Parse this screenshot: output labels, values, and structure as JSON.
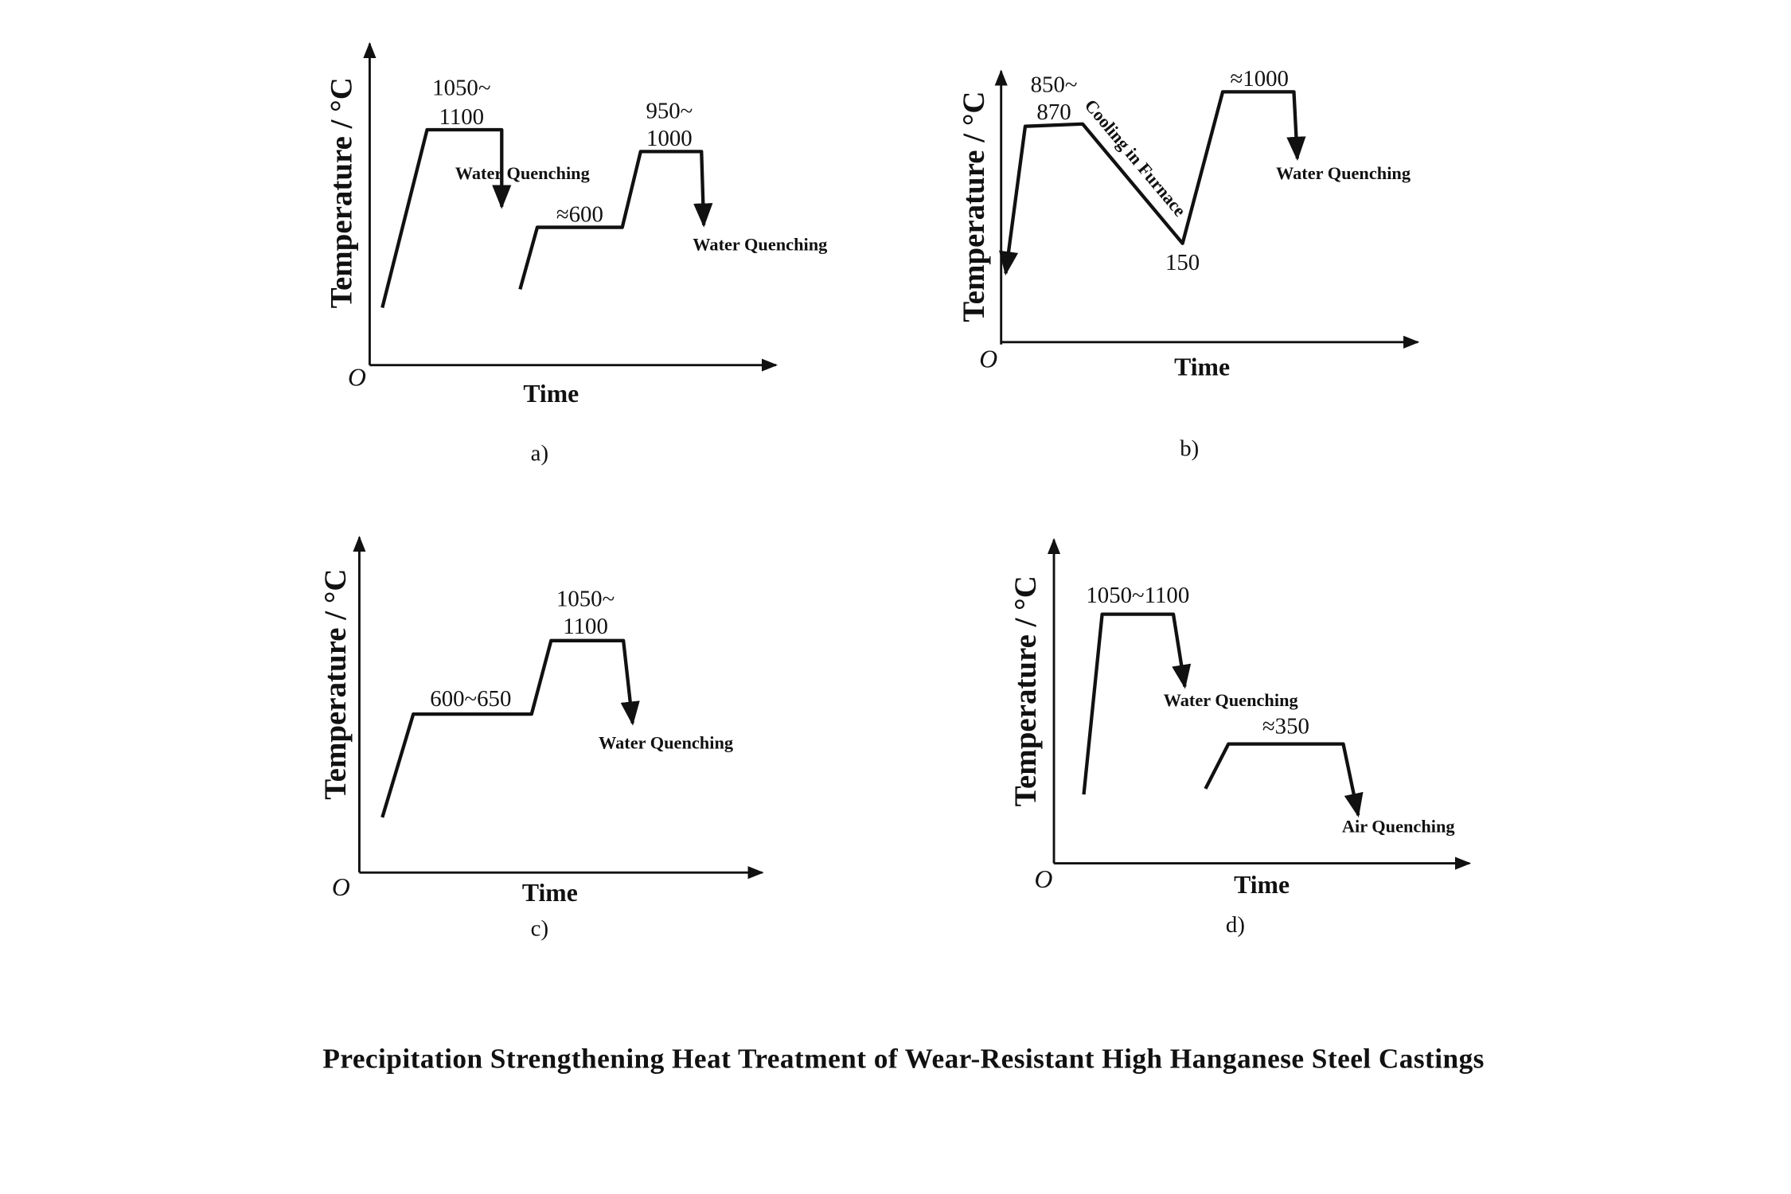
{
  "title": "Precipitation Strengthening Heat Treatment of Wear-Resistant High Hanganese Steel Castings",
  "common": {
    "ylabel": "Temperature / °C",
    "xlabel": "Time",
    "origin": "O"
  },
  "panels": {
    "a": {
      "label": "a)",
      "t1a": "1050~",
      "t1b": "1100",
      "q1": "Water Quenching",
      "t2": "≈600",
      "t3a": "950~",
      "t3b": "1000",
      "q2": "Water Quenching"
    },
    "b": {
      "label": "b)",
      "t1a": "850~",
      "t1b": "870",
      "cool": "Cooling in Furnace",
      "t2": "150",
      "t3": "≈1000",
      "q1": "Water Quenching"
    },
    "c": {
      "label": "c)",
      "t1": "600~650",
      "t2a": "1050~",
      "t2b": "1100",
      "q1": "Water Quenching"
    },
    "d": {
      "label": "d)",
      "t1": "1050~1100",
      "q1": "Water Quenching",
      "t2": "≈350",
      "q2": "Air Quenching"
    }
  },
  "colors": {
    "ink": "#111111",
    "background": "#ffffff"
  }
}
